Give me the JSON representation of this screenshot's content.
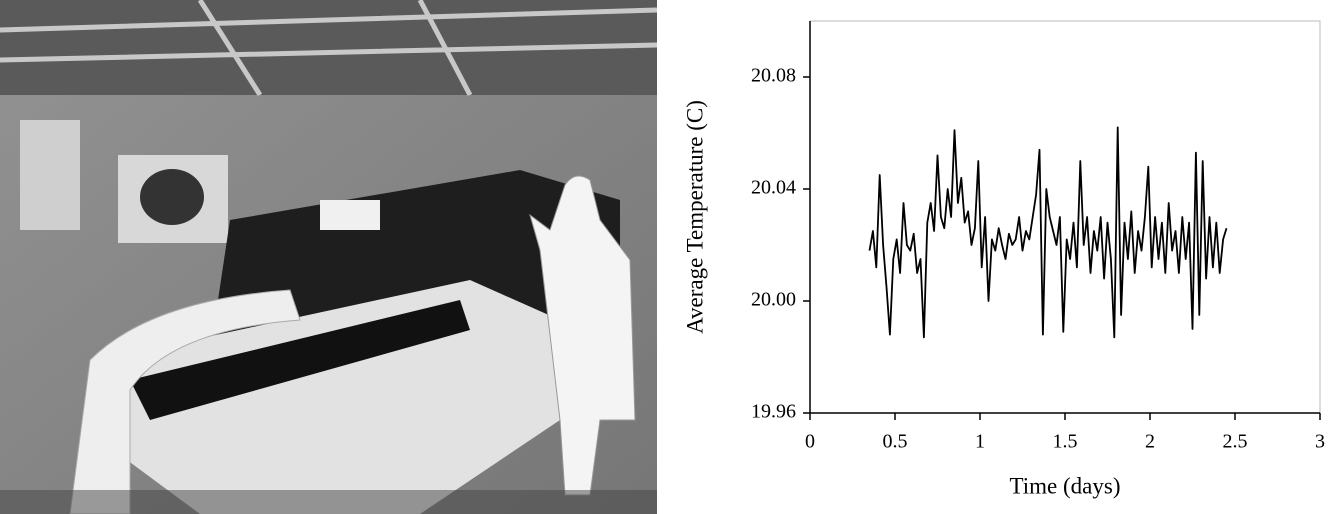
{
  "chart_data": {
    "type": "line",
    "x_label": "Time (days)",
    "y_label": "Average Temperature (C)",
    "xlim": [
      0,
      3
    ],
    "xticks": [
      0,
      0.5,
      1,
      1.5,
      2,
      2.5,
      3
    ],
    "ylim": [
      19.96,
      20.1
    ],
    "yticks": [
      19.96,
      {
        "value": 20,
        "label": "20.00"
      },
      20.04,
      20.08
    ],
    "color": "#000000",
    "x": [
      0.35,
      0.37,
      0.39,
      0.41,
      0.43,
      0.45,
      0.47,
      0.49,
      0.51,
      0.53,
      0.55,
      0.57,
      0.59,
      0.61,
      0.63,
      0.65,
      0.67,
      0.69,
      0.71,
      0.73,
      0.75,
      0.77,
      0.79,
      0.81,
      0.83,
      0.85,
      0.87,
      0.89,
      0.91,
      0.93,
      0.95,
      0.97,
      0.99,
      1.01,
      1.03,
      1.05,
      1.07,
      1.09,
      1.11,
      1.13,
      1.15,
      1.17,
      1.19,
      1.21,
      1.23,
      1.25,
      1.27,
      1.29,
      1.31,
      1.33,
      1.35,
      1.37,
      1.39,
      1.41,
      1.43,
      1.45,
      1.47,
      1.49,
      1.51,
      1.53,
      1.55,
      1.57,
      1.59,
      1.61,
      1.63,
      1.65,
      1.67,
      1.69,
      1.71,
      1.73,
      1.75,
      1.77,
      1.79,
      1.81,
      1.83,
      1.85,
      1.87,
      1.89,
      1.91,
      1.93,
      1.95,
      1.97,
      1.99,
      2.01,
      2.03,
      2.05,
      2.07,
      2.09,
      2.11,
      2.13,
      2.15,
      2.17,
      2.19,
      2.21,
      2.23,
      2.25,
      2.27,
      2.29,
      2.31,
      2.33,
      2.35,
      2.37,
      2.39,
      2.41,
      2.43,
      2.45
    ],
    "values": [
      20.018,
      20.025,
      20.012,
      20.045,
      20.02,
      20.005,
      19.988,
      20.015,
      20.022,
      20.01,
      20.035,
      20.02,
      20.018,
      20.024,
      20.01,
      20.015,
      19.987,
      20.028,
      20.035,
      20.025,
      20.052,
      20.03,
      20.026,
      20.04,
      20.03,
      20.061,
      20.035,
      20.044,
      20.028,
      20.032,
      20.02,
      20.026,
      20.05,
      20.012,
      20.03,
      20.0,
      20.022,
      20.018,
      20.026,
      20.02,
      20.015,
      20.024,
      20.02,
      20.022,
      20.03,
      20.018,
      20.025,
      20.022,
      20.03,
      20.038,
      20.054,
      19.988,
      20.04,
      20.03,
      20.025,
      20.02,
      20.03,
      19.989,
      20.022,
      20.015,
      20.028,
      20.012,
      20.05,
      20.02,
      20.03,
      20.01,
      20.025,
      20.018,
      20.03,
      20.008,
      20.028,
      20.015,
      19.987,
      20.062,
      19.995,
      20.028,
      20.015,
      20.032,
      20.01,
      20.025,
      20.018,
      20.03,
      20.048,
      20.012,
      20.03,
      20.015,
      20.028,
      20.01,
      20.035,
      20.018,
      20.025,
      20.01,
      20.03,
      20.015,
      20.028,
      19.99,
      20.053,
      19.995,
      20.05,
      20.008,
      20.03,
      20.012,
      20.028,
      20.01,
      20.022,
      20.026
    ]
  }
}
